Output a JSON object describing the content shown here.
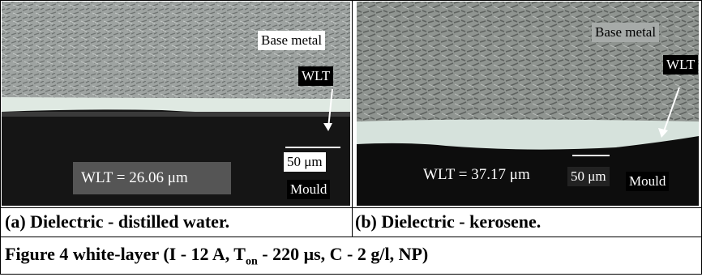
{
  "panels": [
    {
      "labels": {
        "base": "Base metal",
        "wlt": "WLT",
        "scale": "50 μm",
        "measure": "WLT = 26.06 μm",
        "mould": "Mould"
      },
      "caption": "(a)  Dielectric - distilled water."
    },
    {
      "labels": {
        "base": "Base metal",
        "wlt": "WLT",
        "scale": "50 μm",
        "measure": "WLT = 37.17 μm",
        "mould": "Mould"
      },
      "caption": "(b) Dielectric - kerosene."
    }
  ],
  "figure_caption": {
    "before": "Figure 4 white-layer (I - 12 A, T",
    "subscript": "on",
    "after": " - 220 μs, C - 2 g/l, NP)"
  }
}
